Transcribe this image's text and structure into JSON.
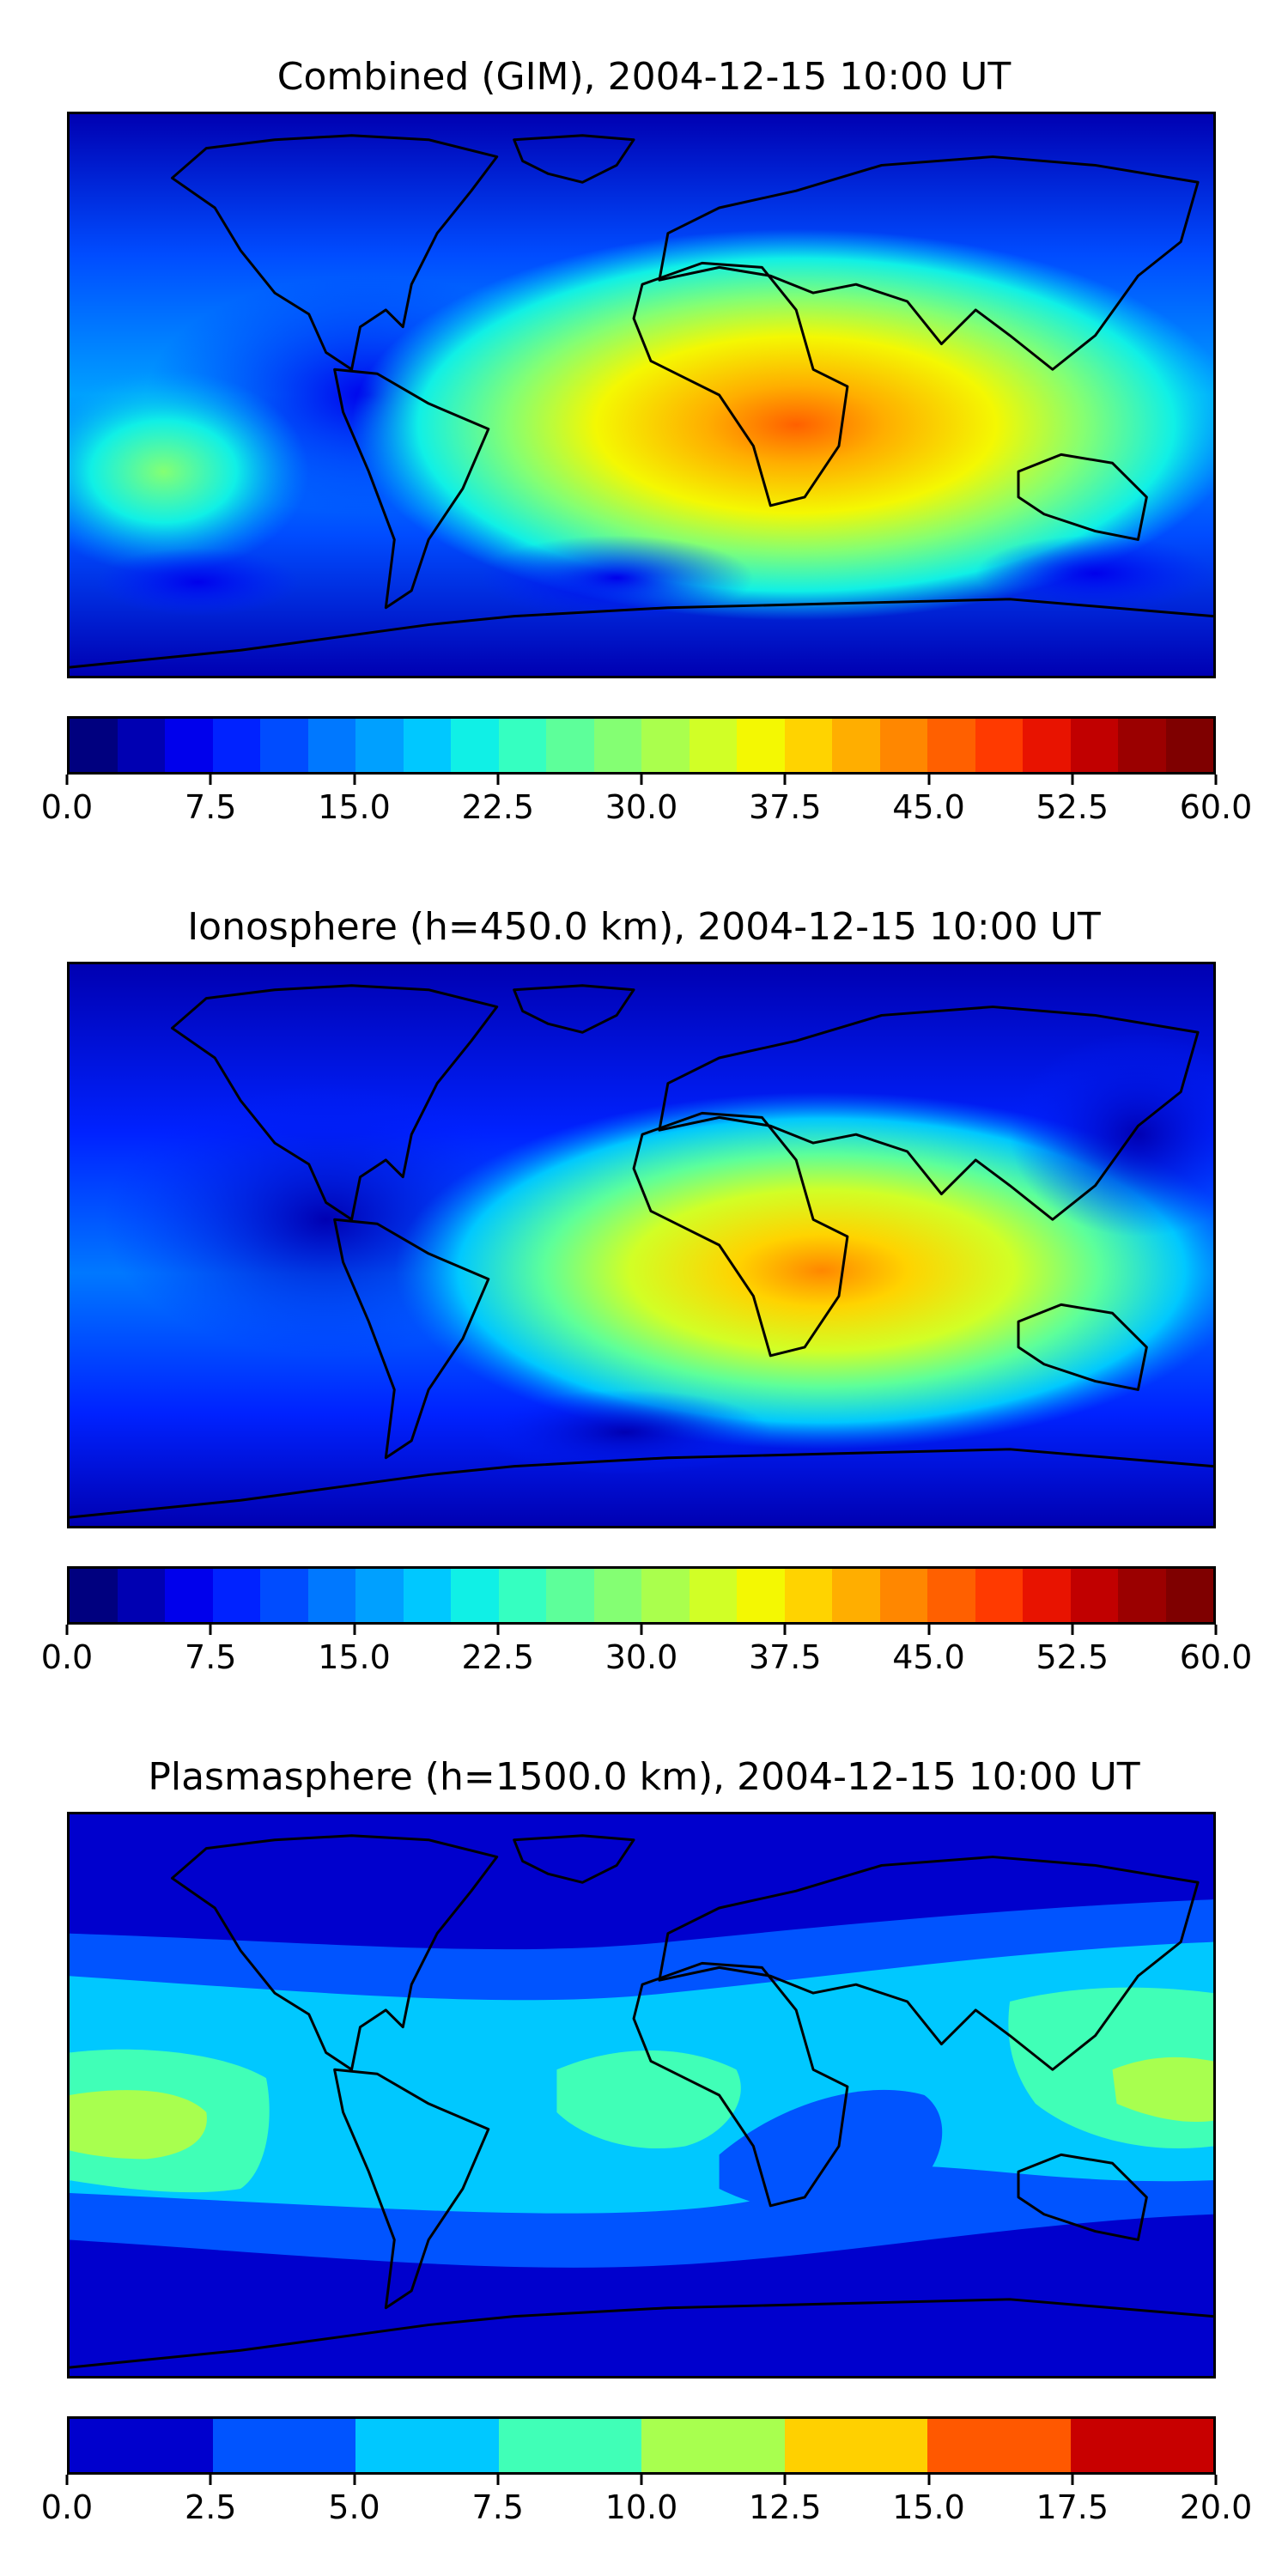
{
  "chart_data": [
    {
      "type": "heatmap",
      "title": "Combined (GIM), 2004-12-15 10:00 UT",
      "colorbar": {
        "min": 0,
        "max": 60,
        "step": 2.5,
        "tick_labels": [
          "0.0",
          "7.5",
          "15.0",
          "22.5",
          "30.0",
          "37.5",
          "45.0",
          "52.5",
          "60.0"
        ],
        "colors": [
          "#00007f",
          "#0000b2",
          "#0000ec",
          "#0022ff",
          "#004cff",
          "#0078ff",
          "#00a0ff",
          "#00c8ff",
          "#10f0e6",
          "#35ffc1",
          "#5dff9a",
          "#84ff73",
          "#aaff4d",
          "#d1ff26",
          "#f4f802",
          "#ffd300",
          "#ffae00",
          "#ff8700",
          "#ff6000",
          "#ff3a00",
          "#e81300",
          "#c10000",
          "#9b0000",
          "#7f0000"
        ]
      },
      "features": {
        "peak_value_approx": 47,
        "peak_region": "Indian Ocean / East Africa",
        "background_value_approx": 7
      }
    },
    {
      "type": "heatmap",
      "title": "Ionosphere  (h=450.0 km), 2004-12-15 10:00 UT",
      "colorbar": {
        "min": 0,
        "max": 60,
        "step": 2.5,
        "tick_labels": [
          "0.0",
          "7.5",
          "15.0",
          "22.5",
          "30.0",
          "37.5",
          "45.0",
          "52.5",
          "60.0"
        ],
        "colors": [
          "#00007f",
          "#0000b2",
          "#0000ec",
          "#0022ff",
          "#004cff",
          "#0078ff",
          "#00a0ff",
          "#00c8ff",
          "#10f0e6",
          "#35ffc1",
          "#5dff9a",
          "#84ff73",
          "#aaff4d",
          "#d1ff26",
          "#f4f802",
          "#ffd300",
          "#ffae00",
          "#ff8700",
          "#ff6000",
          "#ff3a00",
          "#e81300",
          "#c10000",
          "#9b0000",
          "#7f0000"
        ]
      },
      "features": {
        "peak_value_approx": 42,
        "peak_region": "Indian Ocean / East Africa",
        "background_value_approx": 4
      }
    },
    {
      "type": "heatmap",
      "title": "Plasmasphere (h=1500.0 km), 2004-12-15 10:00 UT",
      "colorbar": {
        "min": 0,
        "max": 20,
        "step": 2.5,
        "tick_labels": [
          "0.0",
          "2.5",
          "5.0",
          "7.5",
          "10.0",
          "12.5",
          "15.0",
          "17.5",
          "20.0"
        ],
        "colors": [
          "#0000cd",
          "#0054ff",
          "#00c8ff",
          "#40ffb7",
          "#a8ff4f",
          "#ffd000",
          "#ff5800",
          "#c80000"
        ]
      },
      "features": {
        "peak_value_approx": 11,
        "peak_region": "Pacific / Australia",
        "background_value_approx": 2
      }
    }
  ]
}
